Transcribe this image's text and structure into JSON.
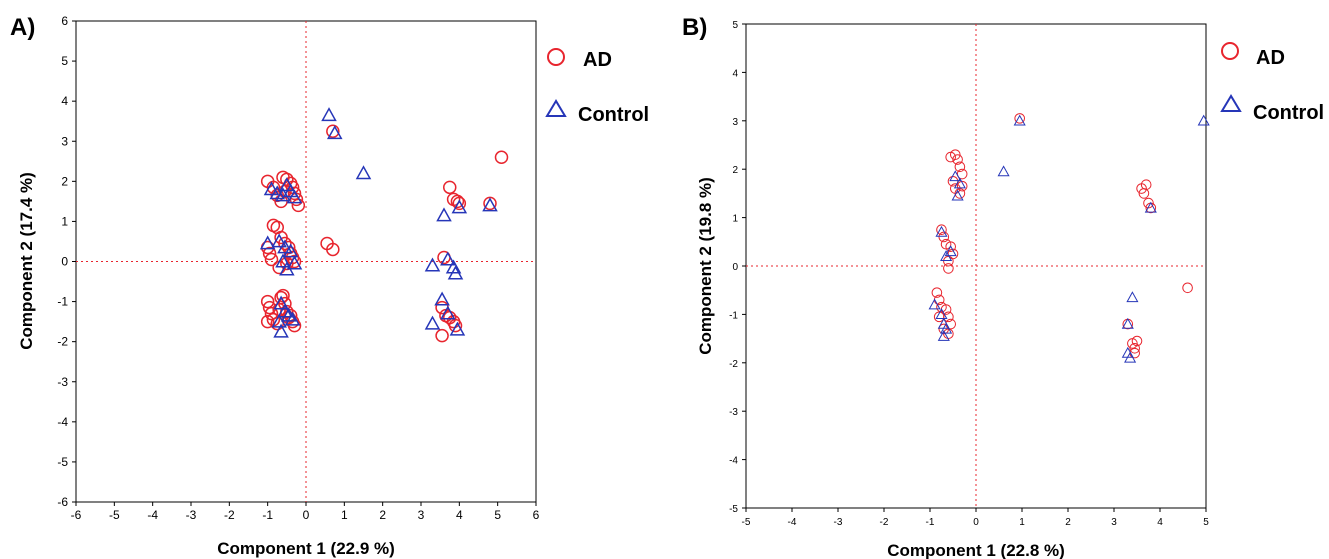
{
  "colors": {
    "ad": "#e8252e",
    "control": "#2636b8",
    "axis": "#000000",
    "guide": "#e8252e"
  },
  "chart_data": [
    {
      "type": "scatter",
      "panel_label": "A)",
      "xlabel": "Component 1 (22.9 %)",
      "ylabel": "Component 2 (17.4 %)",
      "xlim": [
        -6,
        6
      ],
      "ylim": [
        -6,
        6
      ],
      "xticks": [
        "-6",
        "-5",
        "-4",
        "-3",
        "-2",
        "-1",
        "0",
        "1",
        "2",
        "3",
        "4",
        "5",
        "6"
      ],
      "yticks": [
        "6",
        "5",
        "4",
        "3",
        "2",
        "1",
        "0",
        "-1",
        "-2",
        "-3",
        "-4",
        "-5",
        "-6"
      ],
      "grid": false,
      "legend_position": "right",
      "series": [
        {
          "name": "AD",
          "marker": "circle",
          "color": "#e8252e",
          "points": [
            [
              -1.0,
              2.0
            ],
            [
              -0.85,
              1.85
            ],
            [
              -0.75,
              1.65
            ],
            [
              -0.6,
              2.1
            ],
            [
              -0.5,
              2.05
            ],
            [
              -0.4,
              1.95
            ],
            [
              -0.35,
              1.85
            ],
            [
              -0.3,
              1.7
            ],
            [
              -0.25,
              1.55
            ],
            [
              -0.2,
              1.4
            ],
            [
              -0.55,
              1.75
            ],
            [
              -0.65,
              1.5
            ],
            [
              -1.0,
              0.35
            ],
            [
              -0.95,
              0.2
            ],
            [
              -0.85,
              0.9
            ],
            [
              -0.75,
              0.85
            ],
            [
              -0.65,
              0.6
            ],
            [
              -0.55,
              0.45
            ],
            [
              -0.45,
              0.35
            ],
            [
              -0.4,
              0.2
            ],
            [
              -0.35,
              0.1
            ],
            [
              -0.3,
              0.0
            ],
            [
              -0.9,
              0.05
            ],
            [
              -0.7,
              -0.15
            ],
            [
              -0.5,
              -0.05
            ],
            [
              -1.0,
              -1.0
            ],
            [
              -0.95,
              -1.15
            ],
            [
              -0.9,
              -1.3
            ],
            [
              -0.85,
              -1.45
            ],
            [
              -0.75,
              -1.55
            ],
            [
              -0.7,
              -1.2
            ],
            [
              -0.65,
              -0.9
            ],
            [
              -0.55,
              -1.05
            ],
            [
              -0.5,
              -1.25
            ],
            [
              -0.45,
              -1.4
            ],
            [
              -0.4,
              -1.35
            ],
            [
              -0.35,
              -1.5
            ],
            [
              -0.3,
              -1.6
            ],
            [
              -0.6,
              -0.85
            ],
            [
              -1.0,
              -1.5
            ],
            [
              0.55,
              0.45
            ],
            [
              0.7,
              0.3
            ],
            [
              0.7,
              3.25
            ],
            [
              3.6,
              0.1
            ],
            [
              3.55,
              -1.15
            ],
            [
              3.65,
              -1.35
            ],
            [
              3.75,
              -1.4
            ],
            [
              3.85,
              -1.5
            ],
            [
              3.9,
              -1.6
            ],
            [
              3.55,
              -1.85
            ],
            [
              3.75,
              1.85
            ],
            [
              3.85,
              1.55
            ],
            [
              3.95,
              1.5
            ],
            [
              4.0,
              1.45
            ],
            [
              4.8,
              1.45
            ],
            [
              5.1,
              2.6
            ]
          ]
        },
        {
          "name": "Control",
          "marker": "triangle",
          "color": "#2636b8",
          "points": [
            [
              -0.9,
              1.8
            ],
            [
              -0.75,
              1.7
            ],
            [
              -0.5,
              1.9
            ],
            [
              -0.4,
              1.75
            ],
            [
              -0.3,
              1.6
            ],
            [
              -0.6,
              1.65
            ],
            [
              -1.0,
              0.45
            ],
            [
              -0.7,
              0.5
            ],
            [
              -0.55,
              0.35
            ],
            [
              -0.4,
              0.25
            ],
            [
              -0.3,
              -0.05
            ],
            [
              -0.6,
              0.0
            ],
            [
              -0.5,
              -0.2
            ],
            [
              -0.65,
              -1.05
            ],
            [
              -0.55,
              -1.25
            ],
            [
              -0.45,
              -1.35
            ],
            [
              -0.35,
              -1.45
            ],
            [
              -0.7,
              -1.5
            ],
            [
              -0.65,
              -1.75
            ],
            [
              0.6,
              3.65
            ],
            [
              0.75,
              3.2
            ],
            [
              1.5,
              2.2
            ],
            [
              3.3,
              -0.1
            ],
            [
              3.7,
              0.05
            ],
            [
              3.85,
              -0.15
            ],
            [
              3.9,
              -0.3
            ],
            [
              3.3,
              -1.55
            ],
            [
              3.55,
              -0.95
            ],
            [
              3.7,
              -1.3
            ],
            [
              3.95,
              -1.7
            ],
            [
              3.6,
              1.15
            ],
            [
              4.0,
              1.35
            ],
            [
              4.8,
              1.4
            ]
          ]
        }
      ]
    },
    {
      "type": "scatter",
      "panel_label": "B)",
      "xlabel": "Component 1 (22.8 %)",
      "ylabel": "Component 2 (19.8 %)",
      "xlim": [
        -5,
        5
      ],
      "ylim": [
        -5,
        5
      ],
      "xticks": [
        "-5",
        "-4",
        "-3",
        "-2",
        "-1",
        "0",
        "1",
        "2",
        "3",
        "4",
        "5"
      ],
      "yticks": [
        "5",
        "4",
        "3",
        "2",
        "1",
        "0",
        "-1",
        "-2",
        "-3",
        "-4",
        "-5"
      ],
      "grid": false,
      "legend_position": "right",
      "series": [
        {
          "name": "AD",
          "marker": "circle",
          "color": "#e8252e",
          "points": [
            [
              -0.55,
              2.25
            ],
            [
              -0.45,
              2.3
            ],
            [
              -0.4,
              2.2
            ],
            [
              -0.35,
              2.05
            ],
            [
              -0.3,
              1.9
            ],
            [
              -0.5,
              1.75
            ],
            [
              -0.45,
              1.6
            ],
            [
              -0.35,
              1.5
            ],
            [
              -0.3,
              1.65
            ],
            [
              -0.75,
              0.75
            ],
            [
              -0.7,
              0.6
            ],
            [
              -0.65,
              0.45
            ],
            [
              -0.55,
              0.4
            ],
            [
              -0.5,
              0.25
            ],
            [
              -0.6,
              0.1
            ],
            [
              -0.6,
              -0.05
            ],
            [
              -0.85,
              -0.55
            ],
            [
              -0.8,
              -0.7
            ],
            [
              -0.75,
              -0.85
            ],
            [
              -0.65,
              -0.9
            ],
            [
              -0.6,
              -1.05
            ],
            [
              -0.55,
              -1.2
            ],
            [
              -0.7,
              -1.3
            ],
            [
              -0.6,
              -1.4
            ],
            [
              -0.8,
              -1.05
            ],
            [
              0.95,
              3.05
            ],
            [
              3.6,
              1.6
            ],
            [
              3.65,
              1.5
            ],
            [
              3.7,
              1.68
            ],
            [
              3.75,
              1.3
            ],
            [
              3.8,
              1.2
            ],
            [
              3.3,
              -1.2
            ],
            [
              3.4,
              -1.6
            ],
            [
              3.45,
              -1.7
            ],
            [
              3.5,
              -1.55
            ],
            [
              3.45,
              -1.8
            ],
            [
              4.6,
              -0.45
            ]
          ]
        },
        {
          "name": "Control",
          "marker": "triangle",
          "color": "#2636b8",
          "points": [
            [
              -0.45,
              1.85
            ],
            [
              -0.35,
              1.7
            ],
            [
              -0.4,
              1.45
            ],
            [
              -0.75,
              0.7
            ],
            [
              -0.65,
              0.2
            ],
            [
              -0.55,
              0.3
            ],
            [
              -0.9,
              -0.8
            ],
            [
              -0.75,
              -1.0
            ],
            [
              -0.7,
              -1.2
            ],
            [
              -0.65,
              -1.3
            ],
            [
              -0.7,
              -1.45
            ],
            [
              0.6,
              1.95
            ],
            [
              0.95,
              3.0
            ],
            [
              3.4,
              -0.65
            ],
            [
              3.3,
              -1.8
            ],
            [
              3.35,
              -1.9
            ],
            [
              3.3,
              -1.2
            ],
            [
              3.8,
              1.2
            ],
            [
              4.95,
              3.0
            ]
          ]
        }
      ]
    }
  ]
}
